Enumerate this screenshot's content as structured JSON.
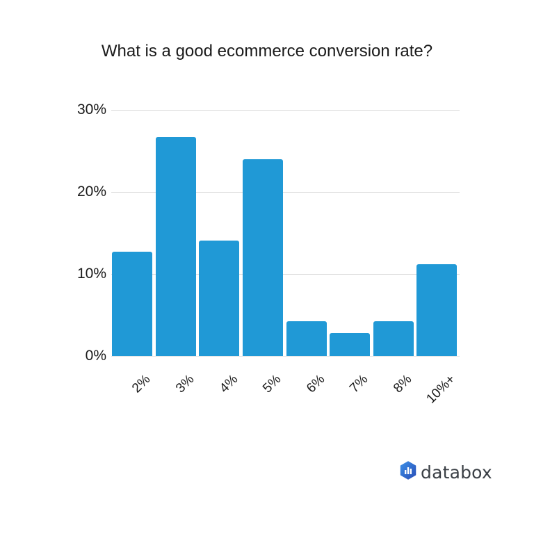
{
  "chart_data": {
    "type": "bar",
    "title": "What is a good ecommerce conversion rate?",
    "xlabel": "",
    "ylabel": "",
    "categories": [
      "2%",
      "3%",
      "4%",
      "5%",
      "6%",
      "7%",
      "8%",
      "10%+"
    ],
    "values": [
      12.7,
      26.7,
      14.1,
      24.0,
      4.2,
      2.8,
      4.2,
      11.2
    ],
    "ylim": [
      0,
      30
    ],
    "yticks": [
      "0%",
      "10%",
      "20%",
      "30%"
    ],
    "ytick_values": [
      0,
      10,
      20,
      30
    ],
    "grid": true,
    "legend": null,
    "bar_color": "#2099d6"
  },
  "branding": {
    "logo_text": "databox",
    "logo_icon": "databox-hexagon-chart-icon",
    "logo_color": "#2c6fd1"
  }
}
